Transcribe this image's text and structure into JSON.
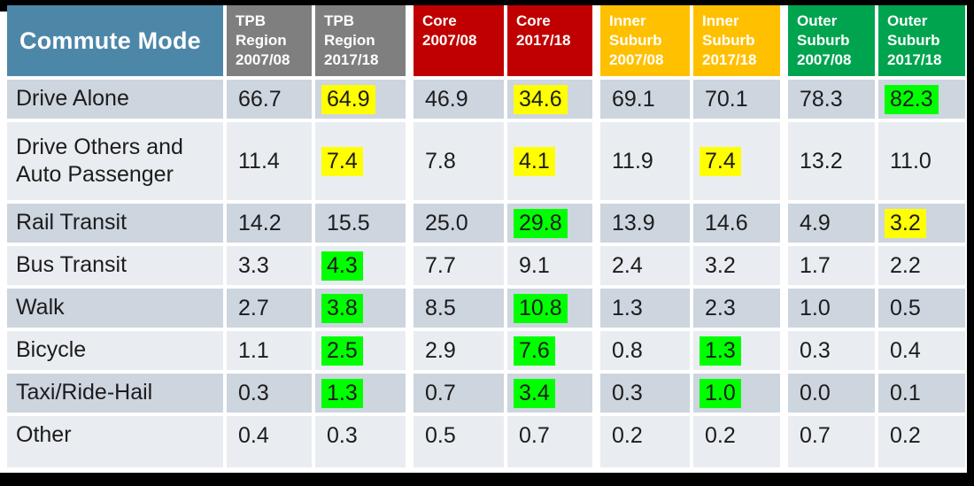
{
  "table": {
    "corner_header": "Commute Mode",
    "corner_color": "#4D87A8",
    "text_color": "#1c1c1c",
    "header_text_color": "#FFFFFF",
    "column_groups": [
      {
        "name": "TPB Region",
        "color": "#7F7F7F",
        "columns": [
          {
            "label": "TPB Region 2007/08"
          },
          {
            "label": "TPB Region 2017/18"
          }
        ]
      },
      {
        "name": "Core",
        "color": "#C00000",
        "columns": [
          {
            "label": "Core 2007/08"
          },
          {
            "label": "Core 2017/18"
          }
        ]
      },
      {
        "name": "Inner Suburb",
        "color": "#FFC000",
        "columns": [
          {
            "label": "Inner Suburb 2007/08"
          },
          {
            "label": "Inner Suburb 2017/18"
          }
        ]
      },
      {
        "name": "Outer Suburb",
        "color": "#00A44F",
        "columns": [
          {
            "label": "Outer Suburb 2007/08"
          },
          {
            "label": "Outer Suburb 2017/18"
          }
        ]
      }
    ],
    "band_colors": {
      "dark": "#CDD5DF",
      "light": "#E9EDF1"
    },
    "highlight_colors": {
      "yellow": "#FFFF00",
      "green": "#00FF00"
    },
    "rows": [
      {
        "mode": "Drive Alone",
        "values": [
          "66.7",
          "64.9",
          "46.9",
          "34.6",
          "69.1",
          "70.1",
          "78.3",
          "82.3"
        ],
        "highlights": [
          "",
          "yellow",
          "",
          "yellow",
          "",
          "",
          "",
          "green"
        ]
      },
      {
        "mode": "Drive Others and Auto Passenger",
        "values": [
          "11.4",
          "7.4",
          "7.8",
          "4.1",
          "11.9",
          "7.4",
          "13.2",
          "11.0"
        ],
        "highlights": [
          "",
          "yellow",
          "",
          "yellow",
          "",
          "yellow",
          "",
          ""
        ]
      },
      {
        "mode": "Rail Transit",
        "values": [
          "14.2",
          "15.5",
          "25.0",
          "29.8",
          "13.9",
          "14.6",
          "4.9",
          "3.2"
        ],
        "highlights": [
          "",
          "",
          "",
          "green",
          "",
          "",
          "",
          "yellow"
        ]
      },
      {
        "mode": "Bus Transit",
        "values": [
          "3.3",
          "4.3",
          "7.7",
          "9.1",
          "2.4",
          "3.2",
          "1.7",
          "2.2"
        ],
        "highlights": [
          "",
          "green",
          "",
          "",
          "",
          "",
          "",
          ""
        ]
      },
      {
        "mode": "Walk",
        "values": [
          "2.7",
          "3.8",
          "8.5",
          "10.8",
          "1.3",
          "2.3",
          "1.0",
          "0.5"
        ],
        "highlights": [
          "",
          "green",
          "",
          "green",
          "",
          "",
          "",
          ""
        ]
      },
      {
        "mode": "Bicycle",
        "values": [
          "1.1",
          "2.5",
          "2.9",
          "7.6",
          "0.8",
          "1.3",
          "0.3",
          "0.4"
        ],
        "highlights": [
          "",
          "green",
          "",
          "green",
          "",
          "green",
          "",
          ""
        ]
      },
      {
        "mode": "Taxi/Ride-Hail",
        "values": [
          "0.3",
          "1.3",
          "0.7",
          "3.4",
          "0.3",
          "1.0",
          "0.0",
          "0.1"
        ],
        "highlights": [
          "",
          "green",
          "",
          "green",
          "",
          "green",
          "",
          ""
        ]
      },
      {
        "mode": "Other",
        "values": [
          "0.4",
          "0.3",
          "0.5",
          "0.7",
          "0.2",
          "0.2",
          "0.7",
          "0.2"
        ],
        "highlights": [
          "",
          "",
          "",
          "",
          "",
          "",
          "",
          ""
        ]
      }
    ]
  }
}
